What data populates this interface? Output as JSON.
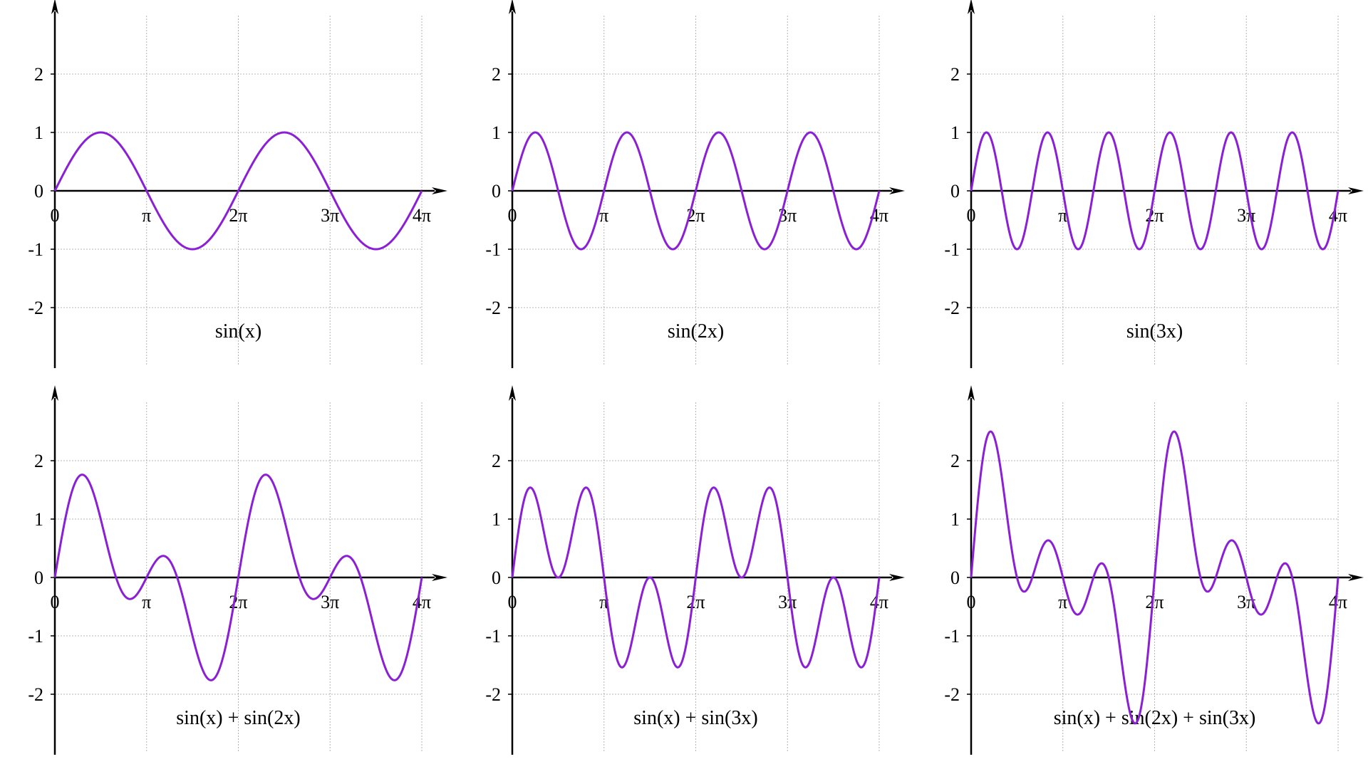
{
  "chart_data": [
    {
      "type": "line",
      "title": "sin(x)",
      "terms": [
        1
      ],
      "xlim": [
        0,
        12.566370614359172
      ],
      "ylim": [
        -3,
        3
      ],
      "x_ticks": [
        0,
        3.141592653589793,
        6.283185307179586,
        9.42477796076938,
        12.566370614359172
      ],
      "x_tick_labels": [
        "0",
        "π",
        "2π",
        "3π",
        "4π"
      ],
      "y_ticks": [
        2,
        1,
        0,
        -1,
        -2
      ],
      "y_tick_labels": [
        "2",
        "1",
        "0",
        "-1",
        "-2"
      ],
      "grid": true,
      "series": [
        {
          "color": "#8b1fd6"
        }
      ]
    },
    {
      "type": "line",
      "title": "sin(2x)",
      "terms": [
        2
      ],
      "xlim": [
        0,
        12.566370614359172
      ],
      "ylim": [
        -3,
        3
      ],
      "x_ticks": [
        0,
        3.141592653589793,
        6.283185307179586,
        9.42477796076938,
        12.566370614359172
      ],
      "x_tick_labels": [
        "0",
        "π",
        "2π",
        "3π",
        "4π"
      ],
      "y_ticks": [
        2,
        1,
        0,
        -1,
        -2
      ],
      "y_tick_labels": [
        "2",
        "1",
        "0",
        "-1",
        "-2"
      ],
      "grid": true,
      "series": [
        {
          "color": "#8b1fd6"
        }
      ]
    },
    {
      "type": "line",
      "title": "sin(3x)",
      "terms": [
        3
      ],
      "xlim": [
        0,
        12.566370614359172
      ],
      "ylim": [
        -3,
        3
      ],
      "x_ticks": [
        0,
        3.141592653589793,
        6.283185307179586,
        9.42477796076938,
        12.566370614359172
      ],
      "x_tick_labels": [
        "0",
        "π",
        "2π",
        "3π",
        "4π"
      ],
      "y_ticks": [
        2,
        1,
        0,
        -1,
        -2
      ],
      "y_tick_labels": [
        "2",
        "1",
        "0",
        "-1",
        "-2"
      ],
      "grid": true,
      "series": [
        {
          "color": "#8b1fd6"
        }
      ]
    },
    {
      "type": "line",
      "title": "sin(x) + sin(2x)",
      "terms": [
        1,
        2
      ],
      "xlim": [
        0,
        12.566370614359172
      ],
      "ylim": [
        -3,
        3
      ],
      "x_ticks": [
        0,
        3.141592653589793,
        6.283185307179586,
        9.42477796076938,
        12.566370614359172
      ],
      "x_tick_labels": [
        "0",
        "π",
        "2π",
        "3π",
        "4π"
      ],
      "y_ticks": [
        2,
        1,
        0,
        -1,
        -2
      ],
      "y_tick_labels": [
        "2",
        "1",
        "0",
        "-1",
        "-2"
      ],
      "grid": true,
      "series": [
        {
          "color": "#8b1fd6"
        }
      ]
    },
    {
      "type": "line",
      "title": "sin(x) + sin(3x)",
      "terms": [
        1,
        3
      ],
      "xlim": [
        0,
        12.566370614359172
      ],
      "ylim": [
        -3,
        3
      ],
      "x_ticks": [
        0,
        3.141592653589793,
        6.283185307179586,
        9.42477796076938,
        12.566370614359172
      ],
      "x_tick_labels": [
        "0",
        "π",
        "2π",
        "3π",
        "4π"
      ],
      "y_ticks": [
        2,
        1,
        0,
        -1,
        -2
      ],
      "y_tick_labels": [
        "2",
        "1",
        "0",
        "-1",
        "-2"
      ],
      "grid": true,
      "series": [
        {
          "color": "#8b1fd6"
        }
      ]
    },
    {
      "type": "line",
      "title": "sin(x) + sin(2x) + sin(3x)",
      "terms": [
        1,
        2,
        3
      ],
      "xlim": [
        0,
        12.566370614359172
      ],
      "ylim": [
        -3,
        3
      ],
      "x_ticks": [
        0,
        3.141592653589793,
        6.283185307179586,
        9.42477796076938,
        12.566370614359172
      ],
      "x_tick_labels": [
        "0",
        "π",
        "2π",
        "3π",
        "4π"
      ],
      "y_ticks": [
        2,
        1,
        0,
        -1,
        -2
      ],
      "y_tick_labels": [
        "2",
        "1",
        "0",
        "-1",
        "-2"
      ],
      "grid": true,
      "series": [
        {
          "color": "#8b1fd6"
        }
      ]
    }
  ]
}
